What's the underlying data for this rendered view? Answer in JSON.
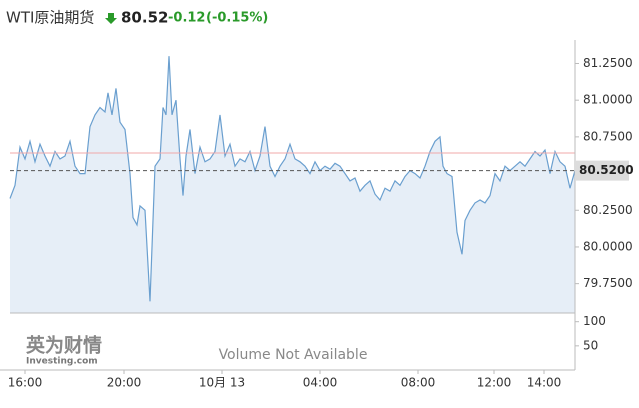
{
  "header": {
    "title": "WTI原油期货",
    "price": "80.52",
    "change": "-0.12",
    "change_pct": "(-0.15%)"
  },
  "logo": {
    "name": "英为财情",
    "site": "Investing.com"
  },
  "chart_data": {
    "type": "area",
    "x": [
      10,
      15,
      20,
      25,
      30,
      35,
      40,
      45,
      50,
      55,
      60,
      65,
      70,
      75,
      80,
      85,
      90,
      95,
      100,
      105,
      108,
      112,
      116,
      120,
      125,
      130,
      133,
      137,
      140,
      145,
      150,
      155,
      160,
      163,
      166,
      169,
      172,
      176,
      180,
      183,
      186,
      190,
      195,
      200,
      205,
      210,
      215,
      220,
      225,
      230,
      235,
      240,
      245,
      250,
      255,
      260,
      265,
      270,
      275,
      280,
      285,
      290,
      295,
      300,
      305,
      310,
      315,
      320,
      325,
      330,
      335,
      340,
      345,
      350,
      355,
      360,
      365,
      370,
      375,
      380,
      385,
      390,
      395,
      400,
      405,
      410,
      415,
      420,
      425,
      430,
      435,
      440,
      443,
      447,
      452,
      457,
      462,
      465,
      470,
      475,
      480,
      485,
      490,
      495,
      500,
      505,
      510,
      515,
      520,
      525,
      530,
      535,
      540,
      545,
      550,
      555,
      560,
      565,
      570,
      575
    ],
    "series": [
      {
        "color": "#6a9fcf",
        "fill": "#e6eef7",
        "values": [
          80.33,
          80.42,
          80.68,
          80.6,
          80.72,
          80.58,
          80.7,
          80.62,
          80.55,
          80.65,
          80.6,
          80.62,
          80.72,
          80.55,
          80.5,
          80.5,
          80.82,
          80.9,
          80.95,
          80.92,
          81.05,
          80.9,
          81.08,
          80.85,
          80.8,
          80.5,
          80.2,
          80.15,
          80.28,
          80.25,
          79.63,
          80.55,
          80.6,
          80.95,
          80.9,
          81.3,
          80.9,
          81.0,
          80.6,
          80.35,
          80.62,
          80.8,
          80.5,
          80.68,
          80.58,
          80.6,
          80.65,
          80.9,
          80.62,
          80.7,
          80.55,
          80.6,
          80.58,
          80.65,
          80.52,
          80.62,
          80.82,
          80.55,
          80.48,
          80.55,
          80.6,
          80.7,
          80.6,
          80.58,
          80.55,
          80.5,
          80.58,
          80.52,
          80.55,
          80.53,
          80.57,
          80.55,
          80.5,
          80.45,
          80.47,
          80.38,
          80.42,
          80.45,
          80.36,
          80.32,
          80.4,
          80.38,
          80.45,
          80.42,
          80.48,
          80.52,
          80.5,
          80.47,
          80.55,
          80.65,
          80.72,
          80.75,
          80.55,
          80.5,
          80.48,
          80.1,
          79.95,
          80.18,
          80.25,
          80.3,
          80.32,
          80.3,
          80.35,
          80.5,
          80.45,
          80.55,
          80.52,
          80.55,
          80.58,
          80.55,
          80.6,
          80.65,
          80.62,
          80.66,
          80.5,
          80.65,
          80.58,
          80.55,
          80.4,
          80.52
        ]
      }
    ],
    "xlim": [
      10,
      575
    ],
    "xticks": [
      {
        "value": 25,
        "label": "16:00"
      },
      {
        "value": 124,
        "label": "20:00"
      },
      {
        "value": 222,
        "label": "10月 13"
      },
      {
        "value": 320,
        "label": "04:00"
      },
      {
        "value": 418,
        "label": "08:00"
      },
      {
        "value": 494,
        "label": "12:00"
      },
      {
        "value": 544,
        "label": "14:00"
      }
    ],
    "ylim": [
      79.55,
      81.41
    ],
    "yticks": [
      {
        "value": 79.75,
        "label": "79.7500"
      },
      {
        "value": 80,
        "label": "80.0000"
      },
      {
        "value": 80.25,
        "label": "80.2500"
      },
      {
        "value": 80.75,
        "label": "80.7500"
      },
      {
        "value": 81,
        "label": "81.0000"
      },
      {
        "value": 81.25,
        "label": "81.2500"
      }
    ],
    "price_tag": {
      "value": 80.52,
      "label": "80.5200"
    },
    "reference_line": 80.64,
    "volume_ylim": [
      0,
      118
    ],
    "volume_yticks": [
      50,
      100
    ],
    "volume_note": "Volume Not Available"
  }
}
